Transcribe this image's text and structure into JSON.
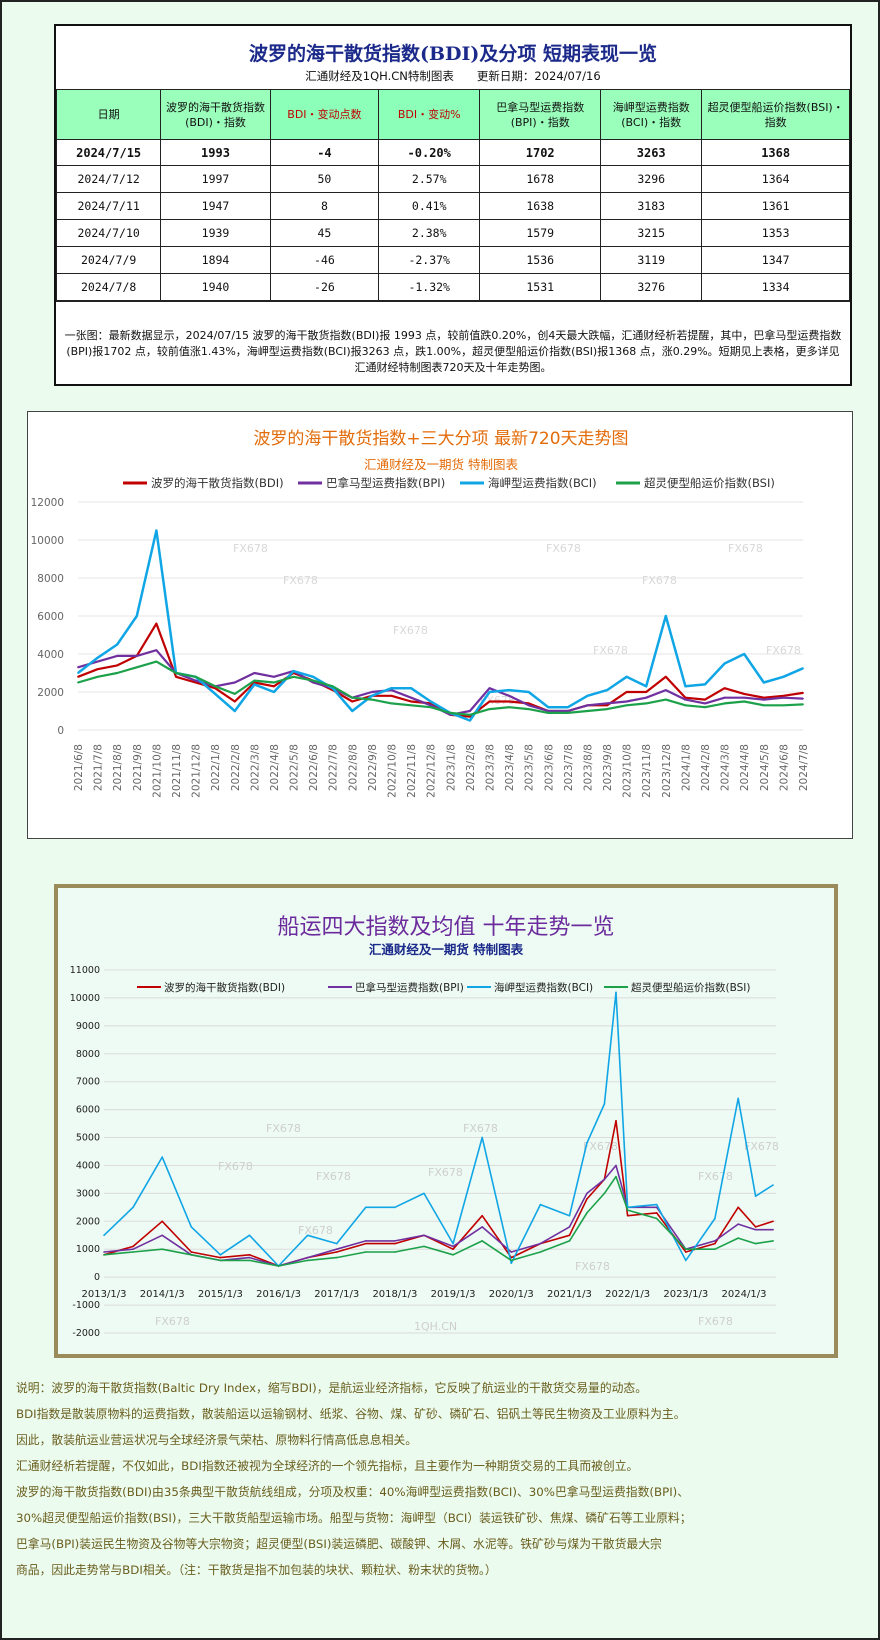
{
  "table": {
    "title": "波罗的海干散货指数(BDI)及分项 短期表现一览",
    "subtitle": "汇通财经及1QH.CN特制图表　　更新日期：2024/07/16",
    "headers": [
      "日期",
      "波罗的海干散货指数(BDI)・指数",
      "BDI・变动点数",
      "BDI・变动%",
      "巴拿马型运费指数(BPI)・指数",
      "海岬型运费指数(BCI)・指数",
      "超灵便型船运价指数(BSI)・指数"
    ],
    "rows": [
      [
        "2024/7/15",
        "1993",
        "-4",
        "-0.20%",
        "1702",
        "3263",
        "1368"
      ],
      [
        "2024/7/12",
        "1997",
        "50",
        "2.57%",
        "1678",
        "3296",
        "1364"
      ],
      [
        "2024/7/11",
        "1947",
        "8",
        "0.41%",
        "1638",
        "3183",
        "1361"
      ],
      [
        "2024/7/10",
        "1939",
        "45",
        "2.38%",
        "1579",
        "3215",
        "1353"
      ],
      [
        "2024/7/9",
        "1894",
        "-46",
        "-2.37%",
        "1536",
        "3119",
        "1347"
      ],
      [
        "2024/7/8",
        "1940",
        "-26",
        "-1.32%",
        "1531",
        "3276",
        "1334"
      ]
    ],
    "note": "一张图：最新数据显示，2024/07/15 波罗的海干散货指数(BDI)报 1993 点，较前值跌0.20%，创4天最大跌幅，汇通财经析若提醒，其中，巴拿马型运费指数(BPI)报1702 点，较前值涨1.43%，海岬型运费指数(BCI)报3263 点，跌1.00%，超灵便型船运价指数(BSI)报1368 点，涨0.29%。短期见上表格，更多详见汇通财经特制图表720天及十年走势图。"
  },
  "chart_data": [
    {
      "type": "line",
      "title": "波罗的海干散货指数+三大分项 最新720天走势图",
      "subtitle": "汇通财经及一期货 特制图表",
      "watermark": "FX678",
      "legend_position": "top",
      "grid": true,
      "ylim": [
        0,
        12000
      ],
      "yticks": [
        0,
        2000,
        4000,
        6000,
        8000,
        10000,
        12000
      ],
      "xticks": [
        "2021/6/8",
        "2021/7/8",
        "2021/8/8",
        "2021/9/8",
        "2021/10/8",
        "2021/11/8",
        "2021/12/8",
        "2022/1/8",
        "2022/2/8",
        "2022/3/8",
        "2022/4/8",
        "2022/5/8",
        "2022/6/8",
        "2022/7/8",
        "2022/8/8",
        "2022/9/8",
        "2022/10/8",
        "2022/11/8",
        "2022/12/8",
        "2023/1/8",
        "2023/2/8",
        "2023/3/8",
        "2023/4/8",
        "2023/5/8",
        "2023/6/8",
        "2023/7/8",
        "2023/8/8",
        "2023/9/8",
        "2023/10/8",
        "2023/11/8",
        "2023/12/8",
        "2024/1/8",
        "2024/2/8",
        "2024/3/8",
        "2024/4/8",
        "2024/5/8",
        "2024/6/8",
        "2024/7/8"
      ],
      "x": [
        "2021/6/8",
        "2021/7/8",
        "2021/8/8",
        "2021/9/8",
        "2021/10/8",
        "2021/11/8",
        "2021/12/8",
        "2022/1/8",
        "2022/2/8",
        "2022/3/8",
        "2022/4/8",
        "2022/5/8",
        "2022/6/8",
        "2022/7/8",
        "2022/8/8",
        "2022/9/8",
        "2022/10/8",
        "2022/11/8",
        "2022/12/8",
        "2023/1/8",
        "2023/2/8",
        "2023/3/8",
        "2023/4/8",
        "2023/5/8",
        "2023/6/8",
        "2023/7/8",
        "2023/8/8",
        "2023/9/8",
        "2023/10/8",
        "2023/11/8",
        "2023/12/8",
        "2024/1/8",
        "2024/2/8",
        "2024/3/8",
        "2024/4/8",
        "2024/5/8",
        "2024/6/8",
        "2024/7/8"
      ],
      "series": [
        {
          "name": "波罗的海干散货指数(BDI)",
          "color": "#c00000",
          "values": [
            2800,
            3200,
            3400,
            3900,
            5600,
            2800,
            2500,
            2200,
            1500,
            2500,
            2300,
            3000,
            2600,
            2100,
            1500,
            1800,
            1800,
            1500,
            1400,
            800,
            700,
            1500,
            1500,
            1400,
            1000,
            1000,
            1300,
            1300,
            2000,
            2000,
            2800,
            1700,
            1600,
            2200,
            1900,
            1700,
            1800,
            1950
          ]
        },
        {
          "name": "巴拿马型运费指数(BPI)",
          "color": "#7030a0",
          "values": [
            3300,
            3600,
            3900,
            3900,
            4200,
            3000,
            2600,
            2300,
            2500,
            3000,
            2800,
            3100,
            2500,
            2200,
            1700,
            2000,
            2100,
            1700,
            1300,
            800,
            1000,
            2200,
            1800,
            1300,
            1000,
            1000,
            1300,
            1400,
            1500,
            1700,
            2100,
            1600,
            1400,
            1700,
            1700,
            1600,
            1700,
            1650
          ]
        },
        {
          "name": "海岬型运费指数(BCI)",
          "color": "#10a6e6",
          "values": [
            3000,
            3800,
            4500,
            6000,
            10500,
            3000,
            2800,
            1900,
            1000,
            2400,
            2000,
            3100,
            2800,
            2200,
            1000,
            1800,
            2200,
            2200,
            1500,
            900,
            500,
            2000,
            2100,
            2000,
            1200,
            1200,
            1800,
            2100,
            2800,
            2300,
            6000,
            2300,
            2400,
            3500,
            4000,
            2500,
            2800,
            3250
          ]
        },
        {
          "name": "超灵便型船运价指数(BSI)",
          "color": "#1ca14a",
          "values": [
            2500,
            2800,
            3000,
            3300,
            3600,
            3000,
            2800,
            2300,
            1900,
            2600,
            2500,
            2800,
            2600,
            2300,
            1700,
            1600,
            1400,
            1300,
            1200,
            900,
            800,
            1100,
            1200,
            1100,
            900,
            900,
            1000,
            1100,
            1300,
            1400,
            1600,
            1300,
            1200,
            1400,
            1500,
            1300,
            1300,
            1350
          ]
        }
      ]
    },
    {
      "type": "line",
      "title": "船运四大指数及均值 十年走势一览",
      "subtitle": "汇通财经及一期货 特制图表",
      "watermark": "FX678",
      "watermark2": "1QH.CN",
      "legend_position": "top",
      "grid": true,
      "ylim": [
        -2000,
        11000
      ],
      "yticks": [
        -2000,
        -1000,
        0,
        1000,
        2000,
        3000,
        4000,
        5000,
        6000,
        7000,
        8000,
        9000,
        10000,
        11000
      ],
      "xticks": [
        "2013/1/3",
        "2014/1/3",
        "2015/1/3",
        "2016/1/3",
        "2017/1/3",
        "2018/1/3",
        "2019/1/3",
        "2020/1/3",
        "2021/1/3",
        "2022/1/3",
        "2023/1/3",
        "2024/1/3"
      ],
      "x": [
        2013.0,
        2013.5,
        2014.0,
        2014.5,
        2015.0,
        2015.5,
        2016.0,
        2016.5,
        2017.0,
        2017.5,
        2018.0,
        2018.5,
        2019.0,
        2019.5,
        2020.0,
        2020.5,
        2021.0,
        2021.3,
        2021.6,
        2021.8,
        2022.0,
        2022.5,
        2023.0,
        2023.5,
        2023.9,
        2024.2,
        2024.5
      ],
      "series": [
        {
          "name": "波罗的海干散货指数(BDI)",
          "color": "#c00000",
          "values": [
            800,
            1100,
            2000,
            900,
            700,
            800,
            400,
            700,
            900,
            1200,
            1200,
            1500,
            1000,
            2200,
            700,
            1200,
            1500,
            2800,
            3500,
            5600,
            2200,
            2300,
            900,
            1200,
            2500,
            1800,
            2000
          ]
        },
        {
          "name": "巴拿马型运费指数(BPI)",
          "color": "#7030a0",
          "values": [
            900,
            1000,
            1500,
            800,
            600,
            700,
            400,
            700,
            1000,
            1300,
            1300,
            1500,
            1100,
            1800,
            900,
            1200,
            1800,
            3000,
            3500,
            4000,
            2500,
            2500,
            1000,
            1300,
            1900,
            1700,
            1700
          ]
        },
        {
          "name": "海岬型运费指数(BCI)",
          "color": "#10a6e6",
          "values": [
            1500,
            2500,
            4300,
            1800,
            800,
            1500,
            400,
            1500,
            1200,
            2500,
            2500,
            3000,
            1200,
            5000,
            500,
            2600,
            2200,
            4800,
            6200,
            10200,
            2500,
            2600,
            600,
            2100,
            6400,
            2900,
            3300
          ]
        },
        {
          "name": "超灵便型船运价指数(BSI)",
          "color": "#1ca14a",
          "values": [
            800,
            900,
            1000,
            800,
            600,
            600,
            400,
            600,
            700,
            900,
            900,
            1100,
            800,
            1300,
            600,
            900,
            1300,
            2300,
            3000,
            3600,
            2400,
            2100,
            1000,
            1000,
            1400,
            1200,
            1300
          ]
        }
      ]
    }
  ],
  "notes": [
    "说明：波罗的海干散货指数(Baltic Dry Index，缩写BDI)，是航运业经济指标，它反映了航运业的干散货交易量的动态。",
    "BDI指数是散装原物料的运费指数，散装船运以运输钢材、纸浆、谷物、煤、矿砂、磷矿石、铝矾土等民生物资及工业原料为主。",
    "因此，散装航运业营运状况与全球经济景气荣枯、原物料行情高低息息相关。",
    "汇通财经析若提醒，不仅如此，BDI指数还被视为全球经济的一个领先指标，且主要作为一种期货交易的工具而被创立。",
    "波罗的海干散货指数(BDI)由35条典型干散货航线组成，分项及权重：40%海岬型运费指数(BCI)、30%巴拿马型运费指数(BPI)、",
    "30%超灵便型船运价指数(BSI)，三大干散货船型运输市场。船型与货物：海岬型（BCI）装运铁矿砂、焦煤、磷矿石等工业原料；",
    "巴拿马(BPI)装运民生物资及谷物等大宗物资；超灵便型(BSI)装运磷肥、碳酸钾、木屑、水泥等。铁矿砂与煤为干散货最大宗",
    "商品，因此走势常与BDI相关。（注：干散货是指不加包装的块状、颗粒状、粉末状的货物。）"
  ]
}
